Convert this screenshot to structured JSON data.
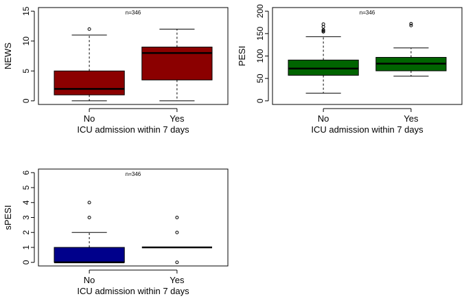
{
  "chart_data": [
    {
      "type": "boxplot",
      "annotation": "n=346",
      "xlabel": "ICU admission within 7 days",
      "ylabel": "NEWS",
      "categories": [
        "No",
        "Yes"
      ],
      "ylim": [
        0,
        15
      ],
      "yticks": [
        0,
        5,
        10,
        15
      ],
      "box_color": "#8b0000",
      "boxes": [
        {
          "category": "No",
          "whisker_low": 0,
          "q1": 1,
          "median": 2,
          "q3": 5,
          "whisker_high": 11,
          "outliers": [
            12
          ]
        },
        {
          "category": "Yes",
          "whisker_low": 0,
          "q1": 3.5,
          "median": 8,
          "q3": 9,
          "whisker_high": 12,
          "outliers": []
        }
      ]
    },
    {
      "type": "boxplot",
      "annotation": "n=346",
      "xlabel": "ICU admission within 7 days",
      "ylabel": "PESI",
      "categories": [
        "No",
        "Yes"
      ],
      "ylim": [
        0,
        200
      ],
      "yticks": [
        0,
        50,
        100,
        150,
        200
      ],
      "box_color": "#006400",
      "boxes": [
        {
          "category": "No",
          "whisker_low": 17,
          "q1": 57,
          "median": 72,
          "q3": 91,
          "whisker_high": 143,
          "outliers": [
            154,
            156,
            158,
            165,
            171
          ]
        },
        {
          "category": "Yes",
          "whisker_low": 55,
          "q1": 67,
          "median": 83,
          "q3": 97,
          "whisker_high": 118,
          "outliers": [
            168,
            172
          ]
        }
      ]
    },
    {
      "type": "boxplot",
      "annotation": "n=346",
      "xlabel": "ICU admission within 7 days",
      "ylabel": "sPESI",
      "categories": [
        "No",
        "Yes"
      ],
      "ylim": [
        0,
        6
      ],
      "yticks": [
        0,
        1,
        2,
        3,
        4,
        5,
        6
      ],
      "box_color": "#00008b",
      "boxes": [
        {
          "category": "No",
          "whisker_low": 0,
          "q1": 0,
          "median": 0,
          "q3": 1,
          "whisker_high": 2,
          "outliers": [
            3,
            4
          ]
        },
        {
          "category": "Yes",
          "whisker_low": 1,
          "q1": 1,
          "median": 1,
          "q3": 1,
          "whisker_high": 1,
          "outliers": [
            0,
            2,
            3
          ]
        }
      ]
    }
  ]
}
